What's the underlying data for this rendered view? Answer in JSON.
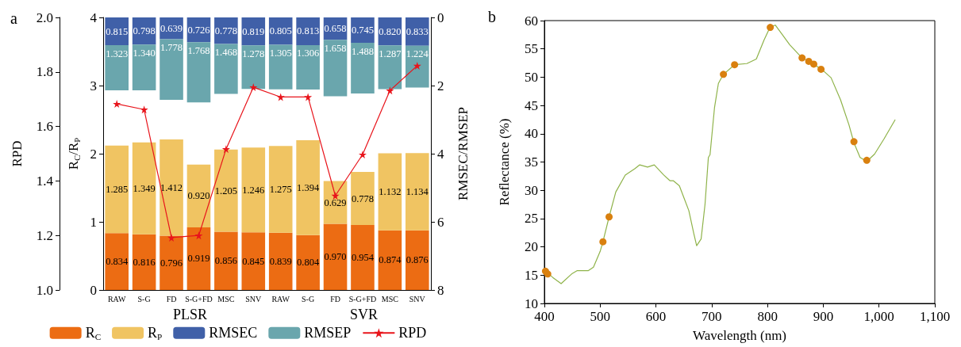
{
  "chart_data": [
    {
      "type": "bar",
      "title": "a",
      "stacked": true,
      "categories": [
        "RAW",
        "S-G",
        "FD",
        "S-G+FD",
        "MSC",
        "SNV",
        "RAW",
        "S-G",
        "FD",
        "S-G+FD",
        "MSC",
        "SNV"
      ],
      "ylabel": "RPD",
      "y2label": "R$_{C}$/R$_{P}$",
      "y3label": "RMSEC/RMSEP",
      "ylim": [
        1.0,
        2.0
      ],
      "yticks": [
        {
          "value": 1.0,
          "label": "1.0"
        },
        1.2,
        1.4,
        1.6,
        1.8,
        {
          "value": 2.0,
          "label": "2.0"
        }
      ],
      "y2lim": [
        0,
        4
      ],
      "y2ticks": [
        0,
        1,
        2,
        3,
        4
      ],
      "y3lim": [
        8,
        0
      ],
      "y3ticks": [
        0,
        2,
        4,
        6,
        8
      ],
      "annotations": [
        "PLSR",
        "SVR"
      ],
      "legend": "bottom",
      "grid": false,
      "series": [
        {
          "name": "R$_{C}$",
          "color": "#ec6c13",
          "axis": "y2",
          "values": [
            0.834,
            0.816,
            0.796,
            0.919,
            0.856,
            0.845,
            0.839,
            0.804,
            0.97,
            0.954,
            0.874,
            0.876
          ],
          "value_labels": [
            "0.834",
            "0.816",
            "0.796",
            "0.919",
            "0.856",
            "0.845",
            "0.839",
            "0.804",
            "0.970",
            "0.954",
            "0.874",
            "0.876"
          ]
        },
        {
          "name": "R$_{P}$",
          "color": "#f0c462",
          "axis": "y2",
          "values": [
            1.285,
            1.349,
            1.412,
            0.92,
            1.205,
            1.246,
            1.275,
            1.394,
            0.629,
            0.778,
            1.132,
            1.134
          ],
          "value_labels": [
            "1.285",
            "1.349",
            "1.412",
            "0.920",
            "1.205",
            "1.246",
            "1.275",
            "1.394",
            "0.629",
            "0.778",
            "1.132",
            "1.134"
          ]
        },
        {
          "name": "RMSEC",
          "color": "#4060a8",
          "axis": "y3",
          "values": [
            0.815,
            0.798,
            0.639,
            0.726,
            0.778,
            0.819,
            0.805,
            0.813,
            0.658,
            0.745,
            0.82,
            0.833
          ],
          "value_labels": [
            "0.815",
            "0.798",
            "0.639",
            "0.726",
            "0.778",
            "0.819",
            "0.805",
            "0.813",
            "0.658",
            "0.745",
            "0.820",
            "0.833"
          ]
        },
        {
          "name": "RMSEP",
          "color": "#6aa6ad",
          "axis": "y3",
          "values": [
            1.323,
            1.34,
            1.778,
            1.768,
            1.468,
            1.278,
            1.305,
            1.306,
            1.658,
            1.488,
            1.287,
            1.224
          ],
          "value_labels": [
            "1.323",
            "1.340",
            "1.778",
            "1.768",
            "1.468",
            "1.278",
            "1.305",
            "1.306",
            "1.658",
            "1.488",
            "1.287",
            "1.224"
          ]
        },
        {
          "name": "RPD",
          "type": "line",
          "color": "#e8141b",
          "axis": "y",
          "marker": "star",
          "values": [
            1.683,
            1.662,
            1.192,
            1.2,
            1.517,
            1.744,
            1.708,
            1.708,
            1.346,
            1.497,
            1.732,
            1.823
          ]
        }
      ]
    },
    {
      "type": "line",
      "title": "b",
      "xlabel": "Wavelength (nm)",
      "ylabel": "Reflectance (%)",
      "xlim": [
        400,
        1100
      ],
      "xticks": [
        400,
        500,
        600,
        700,
        800,
        900,
        {
          "value": 1000,
          "label": "1,000"
        },
        {
          "value": 1100,
          "label": "1,100"
        }
      ],
      "ylim": [
        10,
        60
      ],
      "yticks": [
        10,
        15,
        20,
        25,
        30,
        35,
        40,
        45,
        50,
        55,
        60
      ],
      "grid": false,
      "series": [
        {
          "type": "line",
          "color": "#8fb34a",
          "marker": "none",
          "x": [
            400,
            415,
            430,
            450,
            459,
            479,
            488,
            500,
            505,
            516,
            528,
            545,
            562,
            571,
            585,
            597,
            614,
            625,
            631,
            642,
            659,
            668,
            673,
            681,
            688,
            694,
            697,
            705,
            712,
            721,
            741,
            763,
            780,
            794,
            805,
            814,
            826,
            840,
            860,
            873,
            884,
            897,
            914,
            931,
            946,
            955,
            966,
            978,
            992,
            1009,
            1029
          ],
          "values": [
            15.9,
            14.6,
            13.5,
            15.3,
            15.8,
            15.8,
            16.4,
            19.2,
            20.9,
            25.3,
            29.7,
            32.7,
            33.8,
            34.5,
            34.1,
            34.5,
            32.7,
            31.7,
            31.7,
            30.8,
            26.4,
            22.3,
            20.2,
            21.4,
            27.5,
            35.8,
            36.3,
            44.6,
            48.9,
            50.5,
            52.2,
            52.4,
            53.2,
            56.6,
            58.9,
            59.2,
            57.6,
            55.7,
            53.6,
            52.8,
            52.2,
            51.4,
            49.9,
            46.0,
            41.6,
            38.4,
            35.8,
            35.1,
            36.4,
            39.1,
            42.5
          ]
        },
        {
          "type": "scatter",
          "color": "#d9800f",
          "marker": "circle",
          "x": [
            402,
            406,
            505,
            516,
            721,
            741,
            805,
            859,
            862,
            870,
            874,
            883,
            896,
            955,
            978
          ],
          "values": [
            15.7,
            15.2,
            20.9,
            25.3,
            50.5,
            52.2,
            58.8,
            null,
            53.4,
            null,
            52.8,
            52.3,
            51.4,
            38.6,
            35.3
          ]
        }
      ]
    }
  ]
}
